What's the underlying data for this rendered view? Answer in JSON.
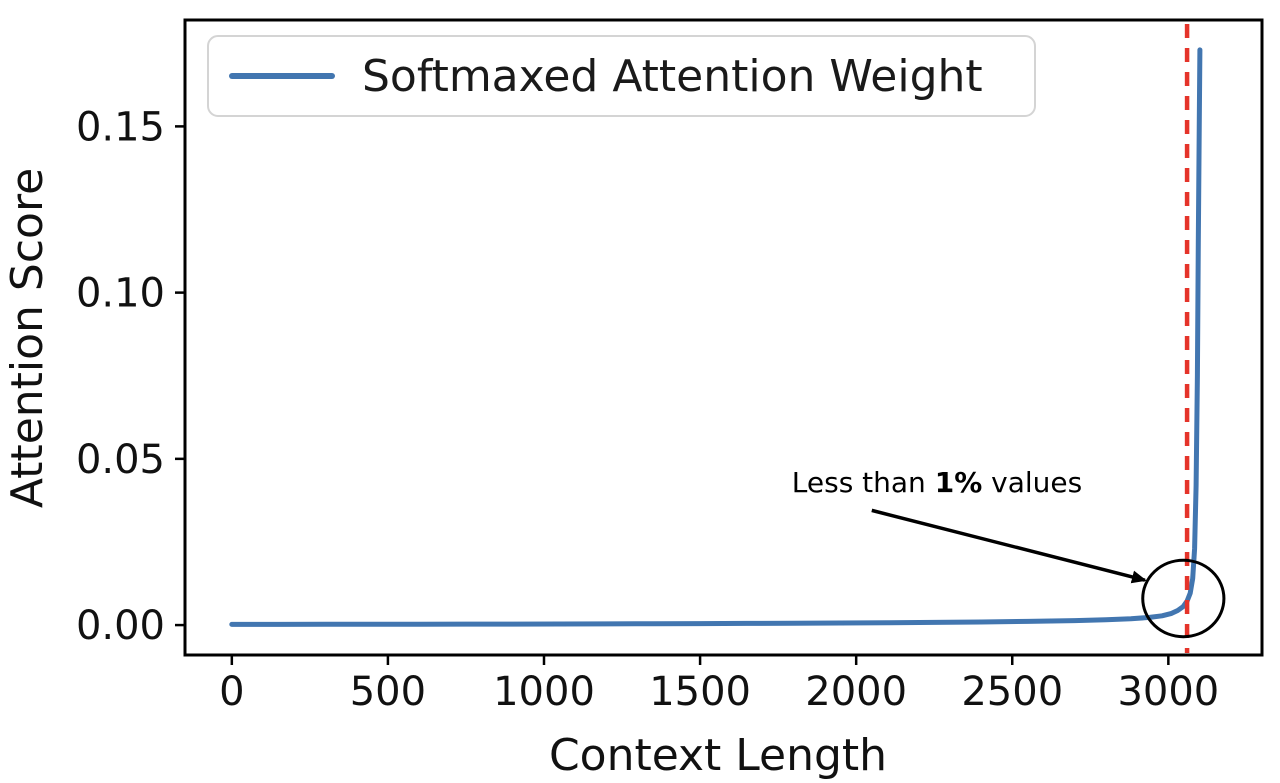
{
  "chart_data": {
    "type": "line",
    "title": "",
    "xlabel": "Context Length",
    "ylabel": "Attention Score",
    "xlim": [
      -150,
      3300
    ],
    "ylim": [
      -0.009,
      0.182
    ],
    "grid": false,
    "xticks": {
      "values": [
        0,
        500,
        1000,
        1500,
        2000,
        2500,
        3000
      ],
      "labels": [
        "0",
        "500",
        "1000",
        "1500",
        "2000",
        "2500",
        "3000"
      ]
    },
    "yticks": {
      "values": [
        0.0,
        0.05,
        0.1,
        0.15
      ],
      "labels": [
        "0.00",
        "0.05",
        "0.10",
        "0.15"
      ]
    },
    "legend": {
      "position": "upper-left",
      "entries": [
        {
          "label": "Softmaxed Attention Weight",
          "color": "#4276b0"
        }
      ]
    },
    "series": [
      {
        "name": "Softmaxed Attention Weight",
        "color": "#4276b0",
        "x": [
          0,
          150,
          300,
          450,
          600,
          750,
          900,
          1050,
          1200,
          1350,
          1500,
          1650,
          1800,
          1950,
          2100,
          2250,
          2400,
          2550,
          2700,
          2800,
          2880,
          2940,
          2980,
          3010,
          3030,
          3048,
          3060,
          3070,
          3078,
          3084,
          3089,
          3093,
          3096,
          3099,
          3101
        ],
        "y": [
          0.0002,
          0.00021,
          0.00022,
          0.00024,
          0.00026,
          0.00028,
          0.0003,
          0.00033,
          0.00036,
          0.0004,
          0.00044,
          0.00049,
          0.00055,
          0.00062,
          0.0007,
          0.0008,
          0.00093,
          0.0011,
          0.00135,
          0.0016,
          0.0019,
          0.0023,
          0.0028,
          0.0035,
          0.0044,
          0.0056,
          0.0072,
          0.0096,
          0.014,
          0.023,
          0.042,
          0.075,
          0.115,
          0.152,
          0.173
        ]
      }
    ],
    "vline": {
      "x": 3060,
      "color": "#e5342a",
      "style": "dashed"
    },
    "annotation": {
      "text_before": "Less than ",
      "text_bold": "1%",
      "text_after": " values",
      "x": 2260,
      "y": 0.043,
      "arrow": {
        "x1": 2050,
        "y1": 0.0345,
        "x2": 2925,
        "y2": 0.0135
      },
      "circle": {
        "cx": 3048,
        "cy": 0.008,
        "rx": 130,
        "ry": 0.0115
      }
    }
  }
}
